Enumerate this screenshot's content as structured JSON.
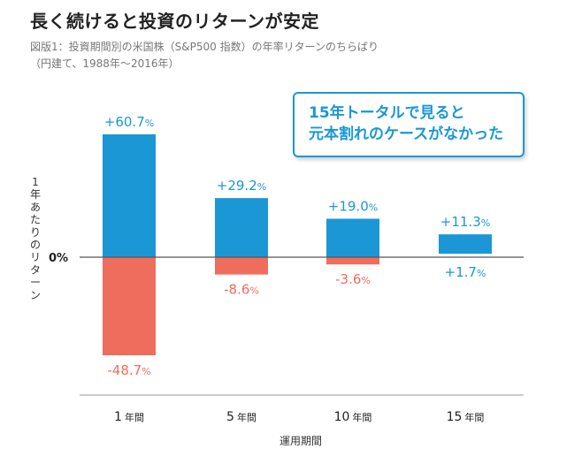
{
  "header": {
    "title": "長く続けると投資のリターンが安定",
    "caption_line1": "図版1：投資期間別の米国株（S&P500 指数）の年率リターンのちらばり",
    "caption_line2": "（円建て、1988年〜2016年）"
  },
  "callout": {
    "line1": "15年トータルで見ると",
    "line2": "元本割れのケースがなかった"
  },
  "colors": {
    "positive": "#1b97d6",
    "negative": "#ef6d5d",
    "axis": "#555555"
  },
  "chart_data": {
    "type": "bar",
    "title": "長く続けると投資のリターンが安定",
    "xlabel": "運用期間",
    "ylabel": "1年あたりのリターン",
    "zero_label": "0%",
    "categories": [
      {
        "num": "1",
        "unit": "年間"
      },
      {
        "num": "5",
        "unit": "年間"
      },
      {
        "num": "10",
        "unit": "年間"
      },
      {
        "num": "15",
        "unit": "年間"
      }
    ],
    "series": [
      {
        "name": "max",
        "values": [
          60.7,
          29.2,
          19.0,
          11.3
        ],
        "labels": [
          "+60.7",
          "+29.2",
          "+19.0",
          "+11.3"
        ]
      },
      {
        "name": "min",
        "values": [
          -48.7,
          -8.6,
          -3.6,
          1.7
        ],
        "labels": [
          "-48.7",
          "-8.6",
          "-3.6",
          "+1.7"
        ]
      }
    ],
    "unit": "%",
    "ylim": [
      -48.7,
      60.7
    ]
  }
}
